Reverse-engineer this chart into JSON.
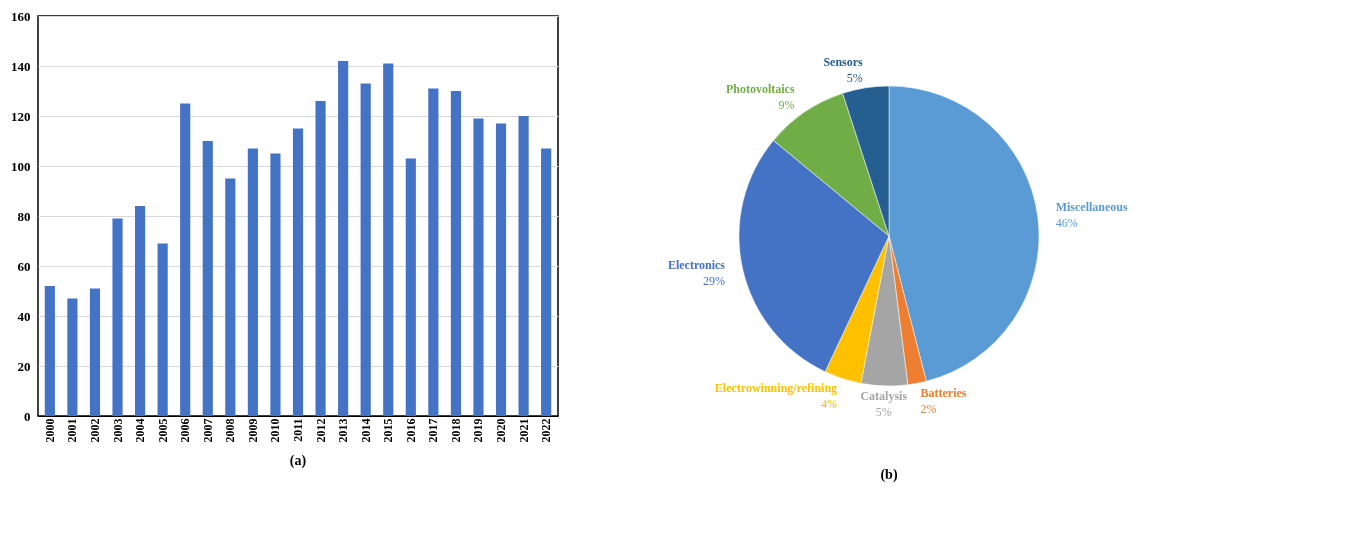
{
  "chart_data": [
    {
      "type": "bar",
      "categories": [
        "2000",
        "2001",
        "2002",
        "2003",
        "2004",
        "2005",
        "2006",
        "2007",
        "2008",
        "2009",
        "2010",
        "2011",
        "2012",
        "2013",
        "2014",
        "2015",
        "2016",
        "2017",
        "2018",
        "2019",
        "2020",
        "2021",
        "2022"
      ],
      "values": [
        52,
        47,
        51,
        79,
        84,
        69,
        125,
        110,
        95,
        107,
        105,
        115,
        126,
        142,
        133,
        141,
        103,
        131,
        130,
        119,
        117,
        120,
        107
      ],
      "color": "#4472c4",
      "ylim": [
        0,
        160
      ],
      "yticks": [
        0,
        20,
        40,
        60,
        80,
        100,
        120,
        140,
        160
      ],
      "grid": "y",
      "annotations": [
        "(a)"
      ]
    },
    {
      "type": "pie",
      "categories": [
        "Miscellaneous",
        "Batteries",
        "Catalysis",
        "Electrowinning/refining",
        "Electronics",
        "Photovoltaics",
        "Sensors"
      ],
      "values": [
        46,
        2,
        5,
        4,
        29,
        9,
        5
      ],
      "value_labels": [
        "46%",
        "2%",
        "5%",
        "4%",
        "29%",
        "9%",
        "5%"
      ],
      "colors": [
        "#5b9bd5",
        "#ed7d31",
        "#a5a5a5",
        "#ffc000",
        "#4472c4",
        "#70ad47",
        "#255e91"
      ],
      "annotations": [
        "(b)"
      ]
    }
  ]
}
